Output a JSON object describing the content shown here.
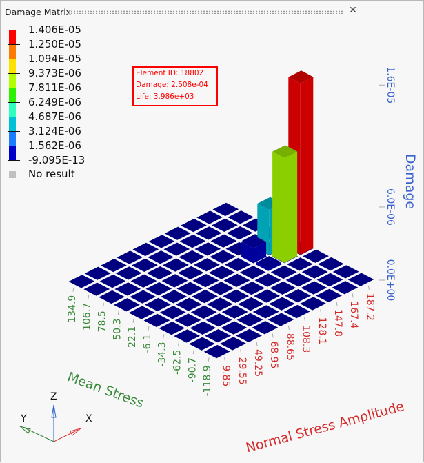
{
  "window": {
    "title": "Damage Matrix",
    "close_icon": "close-icon"
  },
  "legend": {
    "labels": [
      "1.406E-05",
      "1.250E-05",
      "1.094E-05",
      "9.373E-06",
      "7.811E-06",
      "6.249E-06",
      "4.687E-06",
      "3.124E-06",
      "1.562E-06",
      "-9.095E-13"
    ],
    "colors": [
      "#ff0000",
      "#ff7a00",
      "#ffe100",
      "#b3ff00",
      "#2ff000",
      "#2fffbe",
      "#00c1d6",
      "#1a7cff",
      "#0000c8"
    ],
    "no_result": "No result",
    "no_result_color": "#c0c0c0"
  },
  "tooltip": {
    "element_id": "Element ID: 18802",
    "damage": "Damage: 2.508e-04",
    "life": "Life: 3.986e+03"
  },
  "triad": {
    "x": "X",
    "y": "Y",
    "z": "Z"
  },
  "chart_data": {
    "type": "bar3d",
    "x_label": "Normal Stress Amplitude",
    "y_label": "Mean Stress",
    "z_label": "Damage",
    "x_categories": [
      "9.85",
      "29.55",
      "49.25",
      "68.95",
      "88.65",
      "108.3",
      "128.1",
      "147.8",
      "167.4",
      "187.2"
    ],
    "y_categories": [
      "-118.9",
      "-90.7",
      "-62.5",
      "-34.3",
      "-6.1",
      "22.1",
      "50.3",
      "78.5",
      "106.7",
      "134.9"
    ],
    "z_ticks": [
      {
        "value": 0,
        "label": "0.0E+00"
      },
      {
        "value": 6e-06,
        "label": "6.0E-06"
      },
      {
        "value": 1.6e-05,
        "label": "1.6E-05"
      }
    ],
    "zlim": [
      0,
      1.6e-05
    ],
    "values": [
      [
        0,
        0,
        0,
        0,
        0,
        0,
        0,
        0,
        0,
        0
      ],
      [
        0,
        0,
        0,
        0,
        0,
        0,
        0,
        0,
        0,
        0
      ],
      [
        0,
        0,
        0,
        0,
        0,
        0,
        0,
        0,
        0,
        0
      ],
      [
        0,
        0,
        0,
        0,
        0,
        0,
        0,
        0,
        0,
        0
      ],
      [
        0,
        0,
        0,
        0,
        0,
        0,
        0,
        1e-07,
        8.6e-06,
        1.406e-05
      ],
      [
        0,
        0,
        0,
        0,
        0,
        0,
        0,
        1.2e-06,
        3.7e-06,
        0
      ],
      [
        0,
        0,
        0,
        0,
        0,
        0,
        0,
        0,
        0,
        0
      ],
      [
        0,
        0,
        0,
        0,
        0,
        0,
        0,
        0,
        0,
        0
      ],
      [
        0,
        0,
        0,
        0,
        0,
        0,
        0,
        0,
        0,
        0
      ],
      [
        0,
        0,
        0,
        0,
        0,
        0,
        0,
        0,
        0,
        0
      ]
    ],
    "cell_color": "#000080",
    "axis_colors": {
      "x": "#d42a2a",
      "y": "#3a8a3a",
      "z": "#3a63cc"
    }
  }
}
